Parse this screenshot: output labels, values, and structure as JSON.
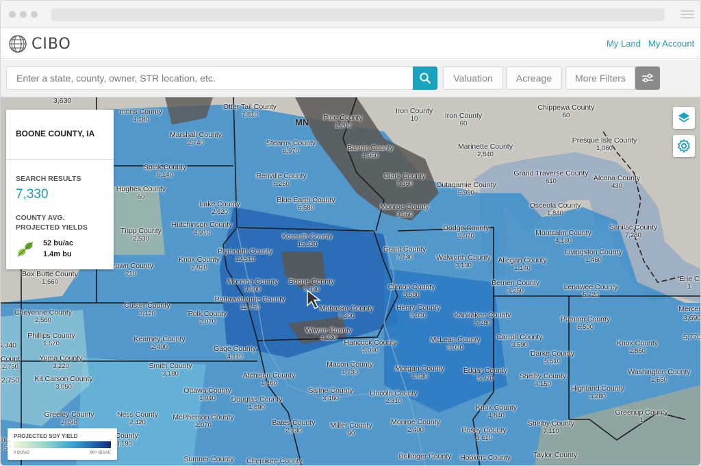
{
  "app": {
    "name": "CIBO"
  },
  "nav": {
    "links": [
      "My Land",
      "My Account"
    ]
  },
  "search": {
    "placeholder": "Enter a state, county, owner, STR location, etc."
  },
  "filters": {
    "buttons": [
      "Valuation",
      "Acreage",
      "More Filters"
    ]
  },
  "panel": {
    "title": "BOONE COUNTY, IA",
    "results_heading": "SEARCH RESULTS",
    "results_value": "7,330",
    "yield_heading_1": "COUNTY AVG.",
    "yield_heading_2": "PROJECTED YIELDS",
    "yield_per_acre": "52 bu/ac",
    "yield_total": "1.4m bu"
  },
  "legend": {
    "title": "PROJECTED SOY YIELD",
    "low": "0 BU/AC",
    "high": "90+ BU/AC"
  },
  "colors": {
    "accent": "#1aa3bf",
    "yield_high": "#0e2b78",
    "yield_low": "#f2f8d6"
  },
  "icons": {
    "search": "search-icon",
    "filters": "sliders-icon",
    "layers": "layers-icon",
    "settings": "gear-icon",
    "crop": "soybean-icon",
    "logo": "globe-icon"
  },
  "map": {
    "state_labels": [
      "MN"
    ],
    "counties": [
      {
        "name": "mons County",
        "count": "4,180"
      },
      {
        "name": "Otter Tail County",
        "count": "7,810"
      },
      {
        "name": "Pine County",
        "count": "1,200"
      },
      {
        "name": "Iron County",
        "count": "10"
      },
      {
        "name": "Iron County",
        "count": "60"
      },
      {
        "name": "Chippewa County",
        "count": "60"
      },
      {
        "name": "Marshall County",
        "count": "2,740"
      },
      {
        "name": "Stearns County",
        "count": "6,970"
      },
      {
        "name": "Barron County",
        "count": "4,950"
      },
      {
        "name": "Marinette County",
        "count": "2,840"
      },
      {
        "name": "Presque Isle County",
        "count": "1,060"
      },
      {
        "name": "Spink County",
        "count": "6,140"
      },
      {
        "name": "Renville County",
        "count": "6,260"
      },
      {
        "name": "Clark County",
        "count": "7,360"
      },
      {
        "name": "Grand Traverse County",
        "count": "610"
      },
      {
        "name": "Alcona County",
        "count": "430"
      },
      {
        "name": "Hughes County",
        "count": "60"
      },
      {
        "name": "Outagamie County",
        "count": "5,980"
      },
      {
        "name": "Lake County",
        "count": "2,620"
      },
      {
        "name": "Blue Earth County",
        "count": "5,580"
      },
      {
        "name": "Monroe County",
        "count": "3,560"
      },
      {
        "name": "Osceola County",
        "count": "1,840"
      },
      {
        "name": "Tripp County",
        "count": "2,530"
      },
      {
        "name": "Hutchinson County",
        "count": "4,910"
      },
      {
        "name": "Kossuth County",
        "count": "15,330"
      },
      {
        "name": "Dodge County",
        "count": "9,070"
      },
      {
        "name": "Sanilac County",
        "count": "7,280"
      },
      {
        "name": "Montcalm County",
        "count": "4,180"
      },
      {
        "name": "Plymouth County",
        "count": "12,510"
      },
      {
        "name": "Grant County",
        "count": "7,730"
      },
      {
        "name": "Knox County",
        "count": "2,820"
      },
      {
        "name": "Walworth County",
        "count": "3,130"
      },
      {
        "name": "Allegan County",
        "count": "1,140"
      },
      {
        "name": "Livingston County",
        "count": "1,460"
      },
      {
        "name": "Brown County",
        "count": "210"
      },
      {
        "name": "Box Butte County",
        "count": "1,660"
      },
      {
        "name": "Monona County",
        "count": "9,900"
      },
      {
        "name": "Boone County",
        "count": "7,330"
      },
      {
        "name": "Berrien County",
        "count": "3,250"
      },
      {
        "name": "Lenawee County",
        "count": "5,720"
      },
      {
        "name": "Erie C",
        "count": "1"
      },
      {
        "name": "Clinton County",
        "count": "9,580"
      },
      {
        "name": "Custer County",
        "count": "3,120"
      },
      {
        "name": "Pottawattamie County",
        "count": "12,750"
      },
      {
        "name": "Cheyenne County",
        "count": "2,560"
      },
      {
        "name": "Polk County",
        "count": "2,070"
      },
      {
        "name": "Mahaska County",
        "count": "7,300"
      },
      {
        "name": "Henry County",
        "count": "5,030"
      },
      {
        "name": "Kankakee County",
        "count": "5,280"
      },
      {
        "name": "Putnam County",
        "count": "6,500"
      },
      {
        "name": "Mercer C",
        "count": "4"
      },
      {
        "name": "Phillips County",
        "count": "1,570"
      },
      {
        "name": "Wayne County",
        "count": "4,230"
      },
      {
        "name": "Hancock County",
        "count": "5,090"
      },
      {
        "name": "McLean County",
        "count": "8,030"
      },
      {
        "name": "Carroll County",
        "count": "3,590"
      },
      {
        "name": "Knox County",
        "count": "2,860"
      },
      {
        "name": "Kearney County",
        "count": "2,400"
      },
      {
        "name": "Gage County",
        "count": "4,110"
      },
      {
        "name": "Darke County",
        "count": "5,510"
      },
      {
        "name": "Yuma County",
        "count": "3,220"
      },
      {
        "name": "Smith County",
        "count": "3,180"
      },
      {
        "name": "Macon County",
        "count": "1,730"
      },
      {
        "name": "Morgan County",
        "count": "4,630"
      },
      {
        "name": "Edgar County",
        "count": "5,970"
      },
      {
        "name": "Washington County",
        "count": "1,650"
      },
      {
        "name": "Kit Carson County",
        "count": "3,050"
      },
      {
        "name": "Atchison County",
        "count": "1,460"
      },
      {
        "name": "Shelby County",
        "count": "4,150"
      },
      {
        "name": "Ottawa County",
        "count": "1,940"
      },
      {
        "name": "Saline County",
        "count": "3,460"
      },
      {
        "name": "Highland County",
        "count": "3,260"
      },
      {
        "name": "Douglas County",
        "count": "1,890"
      },
      {
        "name": "Lincoln County",
        "count": "2,310"
      },
      {
        "name": "Greeley County",
        "count": "2,790"
      },
      {
        "name": "Ness County",
        "count": "2,420"
      },
      {
        "name": "Knox County",
        "count": "4,840"
      },
      {
        "name": "Greenup County",
        "count": "1"
      },
      {
        "name": "McPherson County",
        "count": "2,070"
      },
      {
        "name": "Bates County",
        "count": "2,230"
      },
      {
        "name": "Miller County",
        "count": "90"
      },
      {
        "name": "Monroe County",
        "count": "2,400"
      },
      {
        "name": "Shelby County",
        "count": "7,110"
      },
      {
        "name": "Posey County",
        "count": "3,610"
      },
      {
        "name": "Sumner County",
        "count": ""
      },
      {
        "name": "Bollinger County",
        "count": ""
      },
      {
        "name": "Hopkins County",
        "count": ""
      },
      {
        "name": "Taylor County",
        "count": ""
      },
      {
        "name": "Cherokee County",
        "count": ""
      },
      {
        "name": "y County",
        "count": "3,190"
      },
      {
        "name": "County",
        "count": "50"
      },
      {
        "name": "Count",
        "count": "2,750"
      }
    ],
    "edge_numbers": [
      "3,630",
      "2,750",
      "5,340",
      "3,690",
      "5,770"
    ]
  }
}
